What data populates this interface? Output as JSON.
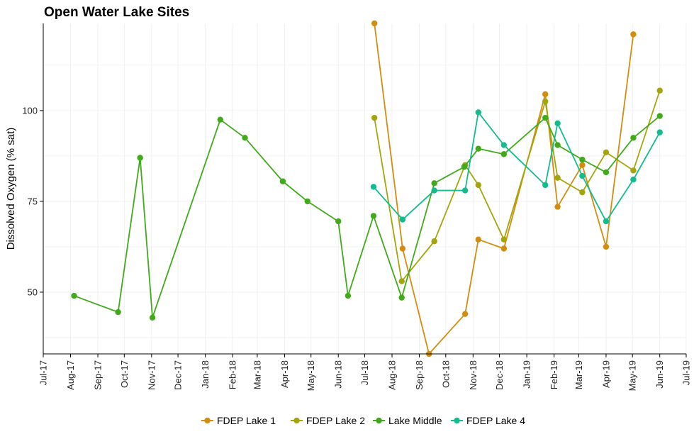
{
  "chart_data": {
    "type": "line",
    "title": "Open Water Lake Sites",
    "xlabel": "",
    "ylabel": "Dissolved Oxygen (% sat)",
    "ylim": [
      33,
      124
    ],
    "xlim": [
      "2017-07-01",
      "2019-07-01"
    ],
    "yticks": [
      50,
      75,
      100
    ],
    "x_ticks": [
      "Jul-17",
      "Aug-17",
      "Sep-17",
      "Oct-17",
      "Nov-17",
      "Dec-17",
      "Jan-18",
      "Feb-18",
      "Mar-18",
      "Apr-18",
      "May-18",
      "Jun-18",
      "Jul-18",
      "Aug-18",
      "Sep-18",
      "Oct-18",
      "Nov-18",
      "Dec-18",
      "Jan-19",
      "Feb-19",
      "Mar-19",
      "Apr-19",
      "May-19",
      "Jun-19",
      "Jul-19"
    ],
    "grid": true,
    "legend_position": "bottom",
    "series": [
      {
        "name": "FDEP Lake 1",
        "color": "#D48C0F",
        "points": [
          {
            "x": "2018-07-12",
            "y": 124
          },
          {
            "x": "2018-08-13",
            "y": 62
          },
          {
            "x": "2018-09-12",
            "y": 33
          },
          {
            "x": "2018-10-23",
            "y": 44
          },
          {
            "x": "2018-11-07",
            "y": 64.5
          },
          {
            "x": "2018-12-06",
            "y": 62
          },
          {
            "x": "2019-01-22",
            "y": 104.5
          },
          {
            "x": "2019-02-05",
            "y": 73.5
          },
          {
            "x": "2019-03-05",
            "y": 85
          },
          {
            "x": "2019-04-01",
            "y": 62.5
          },
          {
            "x": "2019-05-02",
            "y": 121
          }
        ]
      },
      {
        "name": "FDEP Lake 2",
        "color": "#A3A50A",
        "points": [
          {
            "x": "2018-07-12",
            "y": 98
          },
          {
            "x": "2018-08-12",
            "y": 53
          },
          {
            "x": "2018-09-18",
            "y": 64
          },
          {
            "x": "2018-10-23",
            "y": 85
          },
          {
            "x": "2018-11-07",
            "y": 79.5
          },
          {
            "x": "2018-12-06",
            "y": 64.5
          },
          {
            "x": "2019-01-22",
            "y": 102.5
          },
          {
            "x": "2019-02-05",
            "y": 81.5
          },
          {
            "x": "2019-03-05",
            "y": 77.5
          },
          {
            "x": "2019-04-01",
            "y": 88.5
          },
          {
            "x": "2019-05-02",
            "y": 83.5
          },
          {
            "x": "2019-06-01",
            "y": 105.5
          }
        ]
      },
      {
        "name": "Lake Middle",
        "color": "#40AA1A",
        "points": [
          {
            "x": "2017-08-05",
            "y": 49
          },
          {
            "x": "2017-09-24",
            "y": 44.5
          },
          {
            "x": "2017-10-19",
            "y": 87
          },
          {
            "x": "2017-11-02",
            "y": 43
          },
          {
            "x": "2018-01-18",
            "y": 97.5
          },
          {
            "x": "2018-02-15",
            "y": 92.5
          },
          {
            "x": "2018-03-30",
            "y": 80.5
          },
          {
            "x": "2018-04-27",
            "y": 75
          },
          {
            "x": "2018-06-01",
            "y": 69.5
          },
          {
            "x": "2018-06-12",
            "y": 49
          },
          {
            "x": "2018-07-11",
            "y": 71
          },
          {
            "x": "2018-08-12",
            "y": 48.5
          },
          {
            "x": "2018-09-18",
            "y": 80
          },
          {
            "x": "2018-10-22",
            "y": 84.5
          },
          {
            "x": "2018-11-07",
            "y": 89.5
          },
          {
            "x": "2018-12-06",
            "y": 88
          },
          {
            "x": "2019-01-22",
            "y": 98
          },
          {
            "x": "2019-02-05",
            "y": 90.5
          },
          {
            "x": "2019-03-05",
            "y": 86.5
          },
          {
            "x": "2019-04-01",
            "y": 83
          },
          {
            "x": "2019-05-02",
            "y": 92.5
          },
          {
            "x": "2019-06-01",
            "y": 98.5
          }
        ]
      },
      {
        "name": "FDEP Lake 4",
        "color": "#12BC8E",
        "points": [
          {
            "x": "2018-07-11",
            "y": 79
          },
          {
            "x": "2018-08-13",
            "y": 70
          },
          {
            "x": "2018-09-18",
            "y": 78
          },
          {
            "x": "2018-10-23",
            "y": 78
          },
          {
            "x": "2018-11-07",
            "y": 99.5
          },
          {
            "x": "2018-12-06",
            "y": 90.5
          },
          {
            "x": "2019-01-22",
            "y": 79.5
          },
          {
            "x": "2019-02-05",
            "y": 96.5
          },
          {
            "x": "2019-03-05",
            "y": 82
          },
          {
            "x": "2019-04-01",
            "y": 69.5
          },
          {
            "x": "2019-05-02",
            "y": 81
          },
          {
            "x": "2019-06-01",
            "y": 94
          }
        ]
      }
    ]
  }
}
